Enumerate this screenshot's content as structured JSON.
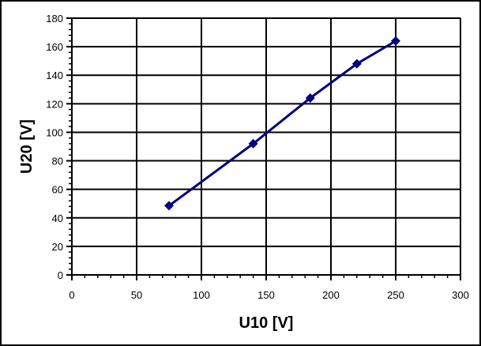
{
  "chart_data": {
    "type": "line",
    "title": "",
    "xlabel": "U10 [V]",
    "ylabel": "U20 [V]",
    "xlim": [
      0,
      300
    ],
    "ylim": [
      0,
      180
    ],
    "xticks": [
      0,
      50,
      100,
      150,
      200,
      250,
      300
    ],
    "yticks": [
      0,
      20,
      40,
      60,
      80,
      100,
      120,
      140,
      160,
      180
    ],
    "grid": true,
    "legend": null,
    "series": [
      {
        "name": "U20",
        "color": "#000080",
        "marker": "diamond",
        "x": [
          75,
          140,
          184,
          220,
          250
        ],
        "y": [
          48.5,
          92,
          124,
          148,
          164
        ]
      }
    ]
  }
}
